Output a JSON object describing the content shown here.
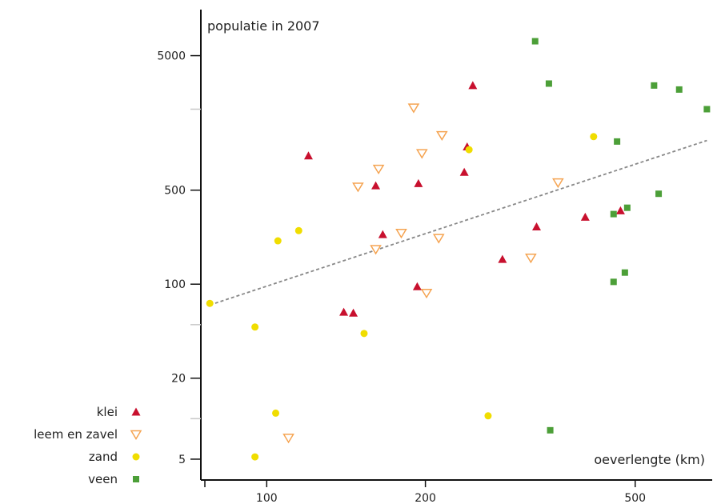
{
  "chart_data": {
    "type": "scatter",
    "title": "",
    "ylabel": "populatie in 2007",
    "xlabel": "oeverlengte (km)",
    "x_scale": "log",
    "y_scale": "log",
    "xlim": [
      75,
      700
    ],
    "ylim": [
      3.5,
      11000
    ],
    "x_ticks": [
      {
        "value": 100,
        "label": "100"
      },
      {
        "value": 200,
        "label": "200"
      },
      {
        "value": 500,
        "label": "500"
      }
    ],
    "y_ticks": [
      {
        "value": 5,
        "label": "5"
      },
      {
        "value": 20,
        "label": "20"
      },
      {
        "value": 100,
        "label": "100"
      },
      {
        "value": 500,
        "label": "500"
      },
      {
        "value": 5000,
        "label": "5000"
      }
    ],
    "y_minor_ticks": [
      10,
      50,
      2000
    ],
    "grid": false,
    "legend_position": "bottom-left",
    "series": [
      {
        "name": "klei",
        "marker": "triangle",
        "color": "#c8102e",
        "points": [
          {
            "x": 120,
            "y": 900
          },
          {
            "x": 140,
            "y": 62
          },
          {
            "x": 146,
            "y": 61
          },
          {
            "x": 161,
            "y": 540
          },
          {
            "x": 166,
            "y": 234
          },
          {
            "x": 193,
            "y": 96
          },
          {
            "x": 194,
            "y": 560
          },
          {
            "x": 237,
            "y": 680
          },
          {
            "x": 240,
            "y": 1050
          },
          {
            "x": 246,
            "y": 3000
          },
          {
            "x": 280,
            "y": 153
          },
          {
            "x": 325,
            "y": 267
          },
          {
            "x": 402,
            "y": 315
          },
          {
            "x": 469,
            "y": 352
          }
        ]
      },
      {
        "name": "leem en zavel",
        "marker": "triangle-down-open",
        "color": "#f5a452",
        "points": [
          {
            "x": 110,
            "y": 7.2
          },
          {
            "x": 149,
            "y": 530
          },
          {
            "x": 161,
            "y": 182
          },
          {
            "x": 163,
            "y": 720
          },
          {
            "x": 180,
            "y": 240
          },
          {
            "x": 190,
            "y": 2050
          },
          {
            "x": 197,
            "y": 940
          },
          {
            "x": 201,
            "y": 86
          },
          {
            "x": 212,
            "y": 220
          },
          {
            "x": 215,
            "y": 1280
          },
          {
            "x": 317,
            "y": 157
          },
          {
            "x": 357,
            "y": 570
          }
        ]
      },
      {
        "name": "zand",
        "marker": "circle",
        "color": "#f0dd00",
        "points": [
          {
            "x": 78,
            "y": 72
          },
          {
            "x": 95,
            "y": 5.2
          },
          {
            "x": 95,
            "y": 48
          },
          {
            "x": 104,
            "y": 11
          },
          {
            "x": 105,
            "y": 210
          },
          {
            "x": 115,
            "y": 250
          },
          {
            "x": 153,
            "y": 43
          },
          {
            "x": 242,
            "y": 1000
          },
          {
            "x": 263,
            "y": 10.5
          },
          {
            "x": 417,
            "y": 1250
          }
        ]
      },
      {
        "name": "veen",
        "marker": "square",
        "color": "#4c9f38",
        "points": [
          {
            "x": 323,
            "y": 6400
          },
          {
            "x": 343,
            "y": 3100
          },
          {
            "x": 345,
            "y": 8.2
          },
          {
            "x": 455,
            "y": 104
          },
          {
            "x": 455,
            "y": 332
          },
          {
            "x": 462,
            "y": 1150
          },
          {
            "x": 478,
            "y": 122
          },
          {
            "x": 483,
            "y": 370
          },
          {
            "x": 543,
            "y": 3000
          },
          {
            "x": 554,
            "y": 470
          },
          {
            "x": 606,
            "y": 2800
          },
          {
            "x": 684,
            "y": 2000
          }
        ]
      }
    ],
    "trendline": {
      "style": "dashed",
      "color": "#888888",
      "from": {
        "x": 78,
        "y": 70
      },
      "to": {
        "x": 684,
        "y": 1170
      }
    }
  }
}
